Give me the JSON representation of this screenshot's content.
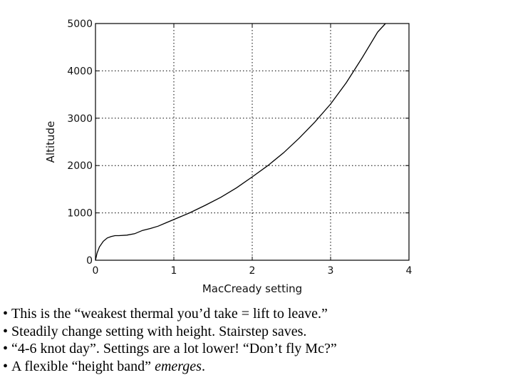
{
  "chart_data": {
    "type": "line",
    "xlabel": "MacCready setting",
    "ylabel": "Altitude",
    "xlim": [
      0,
      4
    ],
    "ylim": [
      0,
      5000
    ],
    "xticks": [
      0,
      1,
      2,
      3,
      4
    ],
    "yticks": [
      0,
      1000,
      2000,
      3000,
      4000,
      5000
    ],
    "grid": true,
    "series": [
      {
        "points": [
          [
            0.0,
            0
          ],
          [
            0.02,
            150
          ],
          [
            0.05,
            280
          ],
          [
            0.1,
            400
          ],
          [
            0.15,
            470
          ],
          [
            0.2,
            500
          ],
          [
            0.25,
            520
          ],
          [
            0.3,
            520
          ],
          [
            0.4,
            530
          ],
          [
            0.5,
            560
          ],
          [
            0.6,
            630
          ],
          [
            0.7,
            670
          ],
          [
            0.8,
            720
          ],
          [
            0.9,
            790
          ],
          [
            1.0,
            860
          ],
          [
            1.2,
            1000
          ],
          [
            1.4,
            1160
          ],
          [
            1.6,
            1330
          ],
          [
            1.8,
            1530
          ],
          [
            2.0,
            1760
          ],
          [
            2.2,
            2000
          ],
          [
            2.4,
            2270
          ],
          [
            2.6,
            2580
          ],
          [
            2.8,
            2920
          ],
          [
            3.0,
            3300
          ],
          [
            3.2,
            3750
          ],
          [
            3.4,
            4270
          ],
          [
            3.6,
            4820
          ],
          [
            3.7,
            5000
          ]
        ]
      }
    ]
  },
  "bullets": [
    "This is the “weakest thermal you’d take = lift to leave.”",
    "Steadily change setting with height. Stairstep saves.",
    "“4-6 knot day”. Settings are a lot lower! “Don’t fly Mc?”"
  ],
  "bullet_last": {
    "before": "A flexible “height band” ",
    "emphasis": "emerges",
    "after": "."
  }
}
